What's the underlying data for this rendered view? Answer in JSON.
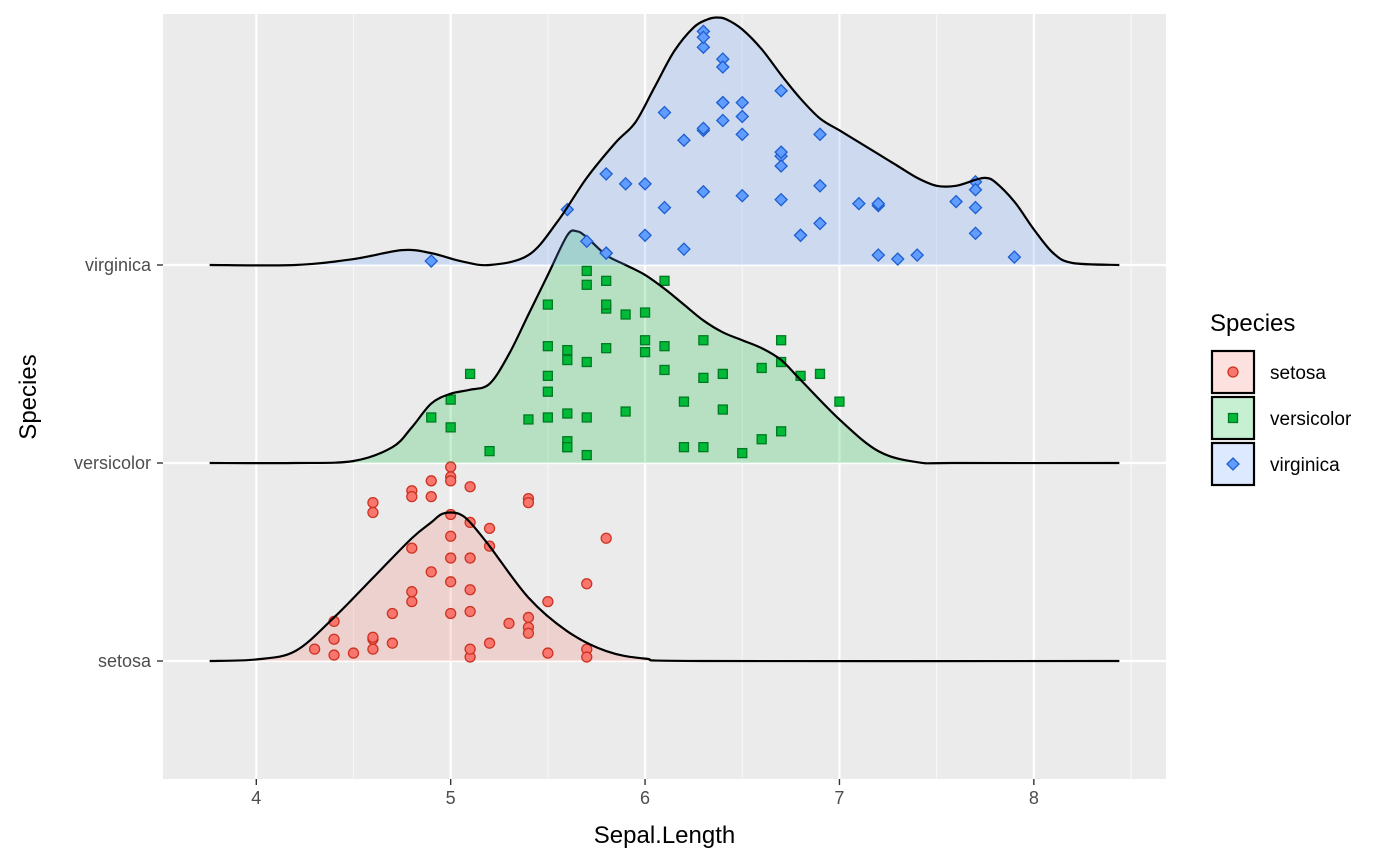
{
  "chart_data": {
    "type": "ridgeline",
    "xlabel": "Sepal.Length",
    "ylabel": "Species",
    "xlim": [
      3.52,
      8.68
    ],
    "x_ticks": [
      "4",
      "5",
      "6",
      "7",
      "8"
    ],
    "y_ticks": [
      "setosa",
      "versicolor",
      "virginica"
    ],
    "grid": true,
    "legend": {
      "title": "Species",
      "position": "right"
    },
    "series": [
      {
        "name": "setosa",
        "fill": "#f8766d",
        "point_shape": "circle",
        "density_peak_x": 5.0,
        "density_shape": [
          [
            3.76,
            0.0
          ],
          [
            4.0,
            0.008
          ],
          [
            4.2,
            0.05
          ],
          [
            4.4,
            0.22
          ],
          [
            4.6,
            0.42
          ],
          [
            4.8,
            0.62
          ],
          [
            4.9,
            0.7
          ],
          [
            4.95,
            0.74
          ],
          [
            5.0,
            0.75
          ],
          [
            5.05,
            0.74
          ],
          [
            5.1,
            0.7
          ],
          [
            5.2,
            0.58
          ],
          [
            5.4,
            0.32
          ],
          [
            5.6,
            0.15
          ],
          [
            5.8,
            0.05
          ],
          [
            6.0,
            0.012
          ],
          [
            6.3,
            0.0
          ],
          [
            8.44,
            0.0
          ]
        ],
        "points": [
          [
            5.1,
            0.25
          ],
          [
            5.1,
            0.02
          ],
          [
            5.0,
            0.74
          ],
          [
            5.0,
            0.4
          ],
          [
            5.1,
            0.7
          ],
          [
            5.1,
            0.88
          ],
          [
            5.1,
            0.52
          ],
          [
            5.0,
            0.93
          ],
          [
            5.2,
            0.58
          ],
          [
            5.2,
            0.67
          ],
          [
            5.4,
            0.22
          ],
          [
            5.4,
            0.82
          ],
          [
            5.4,
            0.17
          ],
          [
            5.4,
            0.14
          ],
          [
            5.4,
            0.8
          ],
          [
            5.5,
            0.04
          ],
          [
            5.5,
            0.3
          ],
          [
            5.7,
            0.39
          ],
          [
            5.8,
            0.62
          ],
          [
            5.7,
            0.06
          ],
          [
            5.3,
            0.19
          ],
          [
            5.0,
            0.63
          ],
          [
            5.0,
            0.52
          ],
          [
            5.0,
            0.24
          ],
          [
            4.9,
            0.45
          ],
          [
            4.9,
            0.83
          ],
          [
            4.9,
            0.91
          ],
          [
            4.8,
            0.86
          ],
          [
            4.8,
            0.57
          ],
          [
            4.8,
            0.83
          ],
          [
            4.8,
            0.3
          ],
          [
            4.7,
            0.09
          ],
          [
            4.7,
            0.24
          ],
          [
            4.6,
            0.8
          ],
          [
            4.6,
            0.75
          ],
          [
            4.6,
            0.06
          ],
          [
            4.6,
            0.11
          ],
          [
            4.5,
            0.04
          ],
          [
            4.4,
            0.2
          ],
          [
            4.4,
            0.03
          ],
          [
            4.4,
            0.11
          ],
          [
            4.3,
            0.06
          ],
          [
            4.6,
            0.12
          ],
          [
            5.1,
            0.06
          ],
          [
            5.0,
            0.98
          ],
          [
            5.0,
            0.91
          ],
          [
            5.2,
            0.09
          ],
          [
            4.8,
            0.35
          ],
          [
            5.1,
            0.36
          ],
          [
            5.7,
            0.02
          ]
        ]
      },
      {
        "name": "versicolor",
        "fill": "#00ba38",
        "point_shape": "square",
        "density_peak_x": 5.65,
        "density_shape": [
          [
            3.76,
            0.0
          ],
          [
            4.2,
            0.0
          ],
          [
            4.5,
            0.01
          ],
          [
            4.7,
            0.08
          ],
          [
            4.8,
            0.18
          ],
          [
            4.9,
            0.3
          ],
          [
            5.0,
            0.35
          ],
          [
            5.1,
            0.37
          ],
          [
            5.2,
            0.4
          ],
          [
            5.3,
            0.55
          ],
          [
            5.4,
            0.75
          ],
          [
            5.5,
            0.95
          ],
          [
            5.6,
            1.15
          ],
          [
            5.65,
            1.17
          ],
          [
            5.7,
            1.14
          ],
          [
            5.8,
            1.05
          ],
          [
            5.9,
            1.0
          ],
          [
            6.0,
            0.95
          ],
          [
            6.1,
            0.88
          ],
          [
            6.2,
            0.8
          ],
          [
            6.3,
            0.72
          ],
          [
            6.4,
            0.66
          ],
          [
            6.5,
            0.62
          ],
          [
            6.6,
            0.58
          ],
          [
            6.7,
            0.52
          ],
          [
            6.8,
            0.42
          ],
          [
            7.0,
            0.22
          ],
          [
            7.2,
            0.06
          ],
          [
            7.4,
            0.004
          ],
          [
            7.6,
            0.0
          ],
          [
            8.44,
            0.0
          ]
        ],
        "points": [
          [
            5.7,
            0.9
          ],
          [
            5.8,
            0.92
          ],
          [
            5.9,
            0.26
          ],
          [
            6.0,
            0.56
          ],
          [
            5.7,
            0.04
          ],
          [
            5.8,
            0.78
          ],
          [
            5.6,
            0.08
          ],
          [
            5.6,
            0.11
          ],
          [
            5.0,
            0.32
          ],
          [
            4.9,
            0.23
          ],
          [
            5.2,
            0.06
          ],
          [
            5.0,
            0.18
          ],
          [
            5.5,
            0.8
          ],
          [
            5.6,
            0.57
          ],
          [
            5.6,
            0.52
          ],
          [
            5.5,
            0.59
          ],
          [
            5.7,
            0.97
          ],
          [
            5.7,
            0.51
          ],
          [
            5.8,
            0.58
          ],
          [
            5.5,
            0.44
          ],
          [
            5.5,
            0.23
          ],
          [
            5.7,
            0.23
          ],
          [
            5.8,
            0.8
          ],
          [
            5.4,
            0.22
          ],
          [
            5.5,
            0.36
          ],
          [
            5.6,
            0.08
          ],
          [
            5.9,
            0.75
          ],
          [
            6.0,
            0.62
          ],
          [
            6.1,
            0.47
          ],
          [
            6.1,
            0.59
          ],
          [
            6.2,
            0.08
          ],
          [
            6.3,
            0.43
          ],
          [
            6.3,
            0.62
          ],
          [
            6.4,
            0.45
          ],
          [
            6.4,
            0.27
          ],
          [
            6.5,
            0.05
          ],
          [
            6.6,
            0.12
          ],
          [
            6.6,
            0.48
          ],
          [
            6.7,
            0.51
          ],
          [
            6.7,
            0.62
          ],
          [
            6.8,
            0.44
          ],
          [
            6.9,
            0.45
          ],
          [
            7.0,
            0.31
          ],
          [
            6.2,
            0.31
          ],
          [
            6.3,
            0.08
          ],
          [
            6.1,
            0.92
          ],
          [
            6.0,
            0.76
          ],
          [
            5.6,
            0.25
          ],
          [
            6.7,
            0.16
          ],
          [
            5.1,
            0.45
          ]
        ]
      },
      {
        "name": "virginica",
        "fill": "#619cff",
        "point_shape": "diamond",
        "density_peak_x": 6.37,
        "density_shape": [
          [
            3.76,
            0.0
          ],
          [
            4.2,
            0.0
          ],
          [
            4.5,
            0.03
          ],
          [
            4.75,
            0.075
          ],
          [
            4.9,
            0.06
          ],
          [
            5.05,
            0.02
          ],
          [
            5.2,
            0.0
          ],
          [
            5.4,
            0.05
          ],
          [
            5.55,
            0.22
          ],
          [
            5.7,
            0.44
          ],
          [
            5.85,
            0.62
          ],
          [
            5.95,
            0.72
          ],
          [
            6.05,
            0.9
          ],
          [
            6.15,
            1.08
          ],
          [
            6.25,
            1.2
          ],
          [
            6.32,
            1.24
          ],
          [
            6.37,
            1.25
          ],
          [
            6.42,
            1.24
          ],
          [
            6.5,
            1.19
          ],
          [
            6.6,
            1.09
          ],
          [
            6.7,
            0.96
          ],
          [
            6.8,
            0.84
          ],
          [
            6.9,
            0.74
          ],
          [
            7.0,
            0.68
          ],
          [
            7.1,
            0.62
          ],
          [
            7.2,
            0.56
          ],
          [
            7.3,
            0.5
          ],
          [
            7.4,
            0.44
          ],
          [
            7.5,
            0.4
          ],
          [
            7.6,
            0.4
          ],
          [
            7.7,
            0.43
          ],
          [
            7.75,
            0.44
          ],
          [
            7.8,
            0.42
          ],
          [
            7.9,
            0.32
          ],
          [
            8.0,
            0.18
          ],
          [
            8.1,
            0.06
          ],
          [
            8.2,
            0.01
          ],
          [
            8.44,
            0.0
          ]
        ],
        "points": [
          [
            6.3,
            1.18
          ],
          [
            5.8,
            0.46
          ],
          [
            7.1,
            0.31
          ],
          [
            6.3,
            0.37
          ],
          [
            6.5,
            0.35
          ],
          [
            7.6,
            0.32
          ],
          [
            4.9,
            0.02
          ],
          [
            7.3,
            0.03
          ],
          [
            6.7,
            0.33
          ],
          [
            7.2,
            0.3
          ],
          [
            6.5,
            0.82
          ],
          [
            6.4,
            0.82
          ],
          [
            6.8,
            0.15
          ],
          [
            5.7,
            0.12
          ],
          [
            5.8,
            0.06
          ],
          [
            6.4,
            1.04
          ],
          [
            6.5,
            0.75
          ],
          [
            7.7,
            0.29
          ],
          [
            7.7,
            0.16
          ],
          [
            6.0,
            0.15
          ],
          [
            6.9,
            0.4
          ],
          [
            5.6,
            0.28
          ],
          [
            7.7,
            0.42
          ],
          [
            6.3,
            0.68
          ],
          [
            6.7,
            0.55
          ],
          [
            7.2,
            0.31
          ],
          [
            6.2,
            0.08
          ],
          [
            6.1,
            0.29
          ],
          [
            6.4,
            0.73
          ],
          [
            7.2,
            0.05
          ],
          [
            7.4,
            0.05
          ],
          [
            7.9,
            0.04
          ],
          [
            6.4,
            0.82
          ],
          [
            6.3,
            0.69
          ],
          [
            6.1,
            0.77
          ],
          [
            7.7,
            0.38
          ],
          [
            6.3,
            1.1
          ],
          [
            6.4,
            1.0
          ],
          [
            6.0,
            0.41
          ],
          [
            6.9,
            0.66
          ],
          [
            6.7,
            0.88
          ],
          [
            6.9,
            0.21
          ],
          [
            5.8,
            0.06
          ],
          [
            6.8,
            0.15
          ],
          [
            6.7,
            0.57
          ],
          [
            6.7,
            0.5
          ],
          [
            6.3,
            1.15
          ],
          [
            6.5,
            0.66
          ],
          [
            6.2,
            0.63
          ],
          [
            5.9,
            0.41
          ]
        ]
      }
    ]
  }
}
